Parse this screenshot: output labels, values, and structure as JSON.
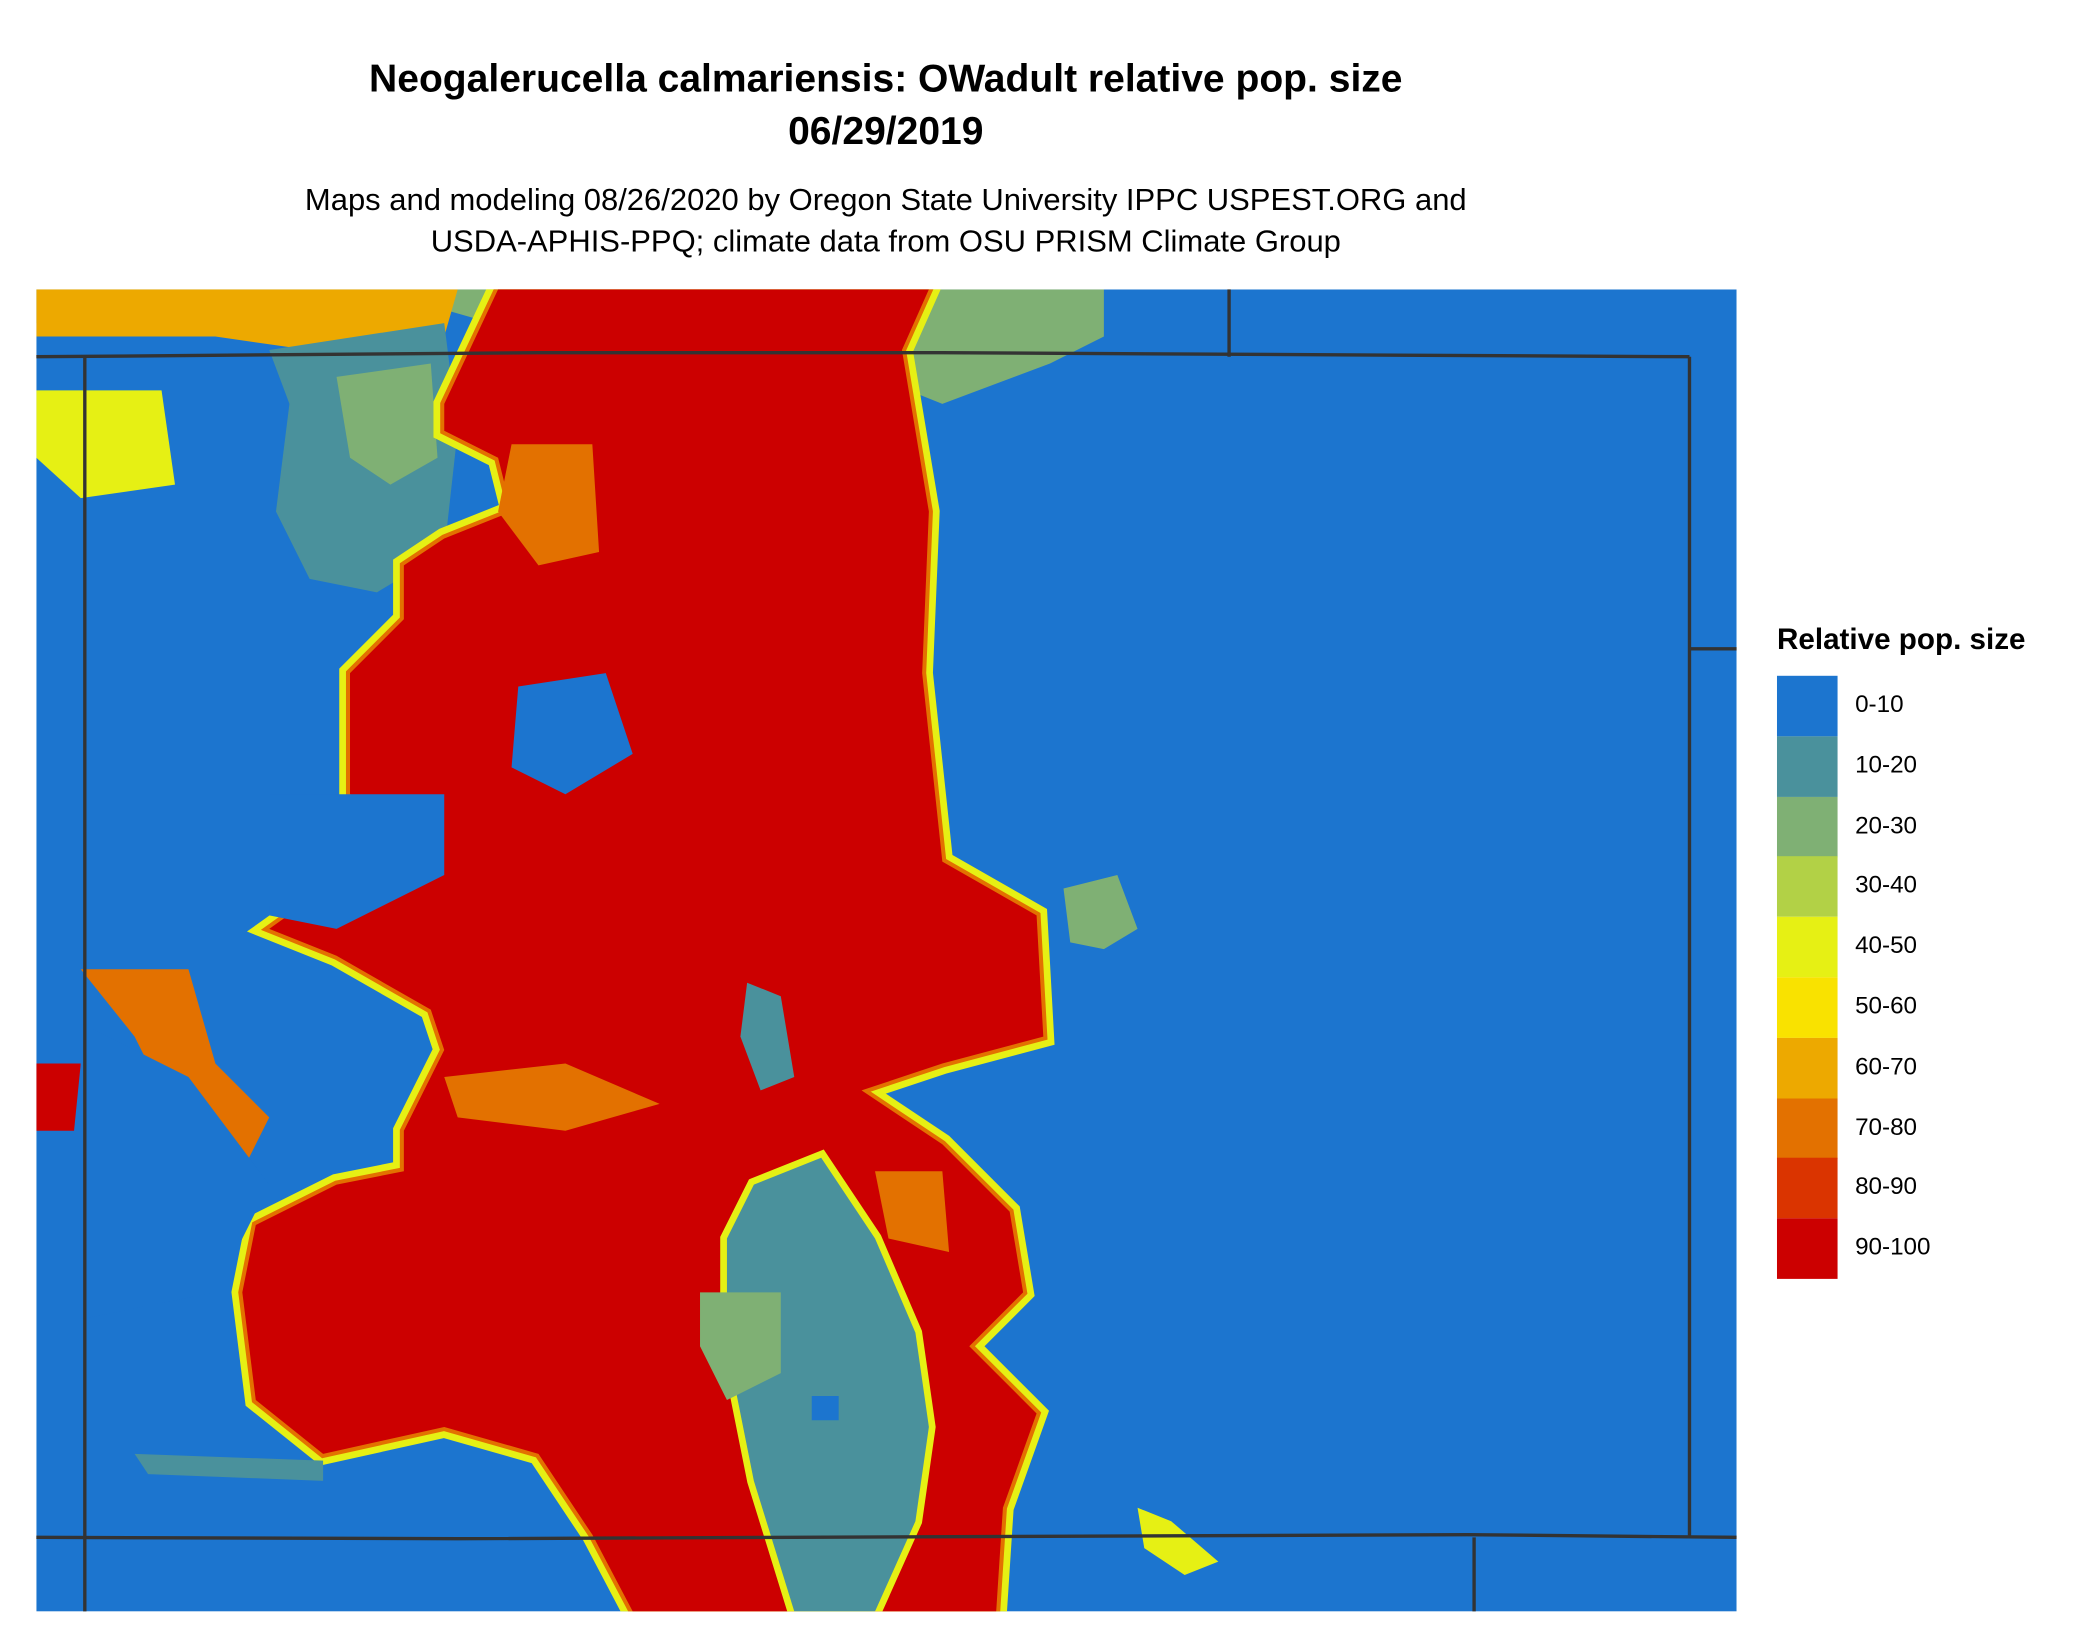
{
  "title": "Neogalerucella calmariensis: OWadult relative pop. size",
  "date": "06/29/2019",
  "subtitle": [
    "Maps and modeling 08/26/2020 by Oregon State University IPPC USPEST.ORG and",
    "USDA-APHIS-PPQ; climate data from OSU PRISM Climate Group"
  ],
  "legend": {
    "title": "Relative pop. size",
    "items": [
      {
        "label": "0-10",
        "color": "#1c75cf"
      },
      {
        "label": "10-20",
        "color": "#4a919c"
      },
      {
        "label": "20-30",
        "color": "#7fb074"
      },
      {
        "label": "30-40",
        "color": "#b2d146"
      },
      {
        "label": "40-50",
        "color": "#e6f014"
      },
      {
        "label": "50-60",
        "color": "#f9e200"
      },
      {
        "label": "60-70",
        "color": "#eda900"
      },
      {
        "label": "70-80",
        "color": "#e37100"
      },
      {
        "label": "80-90",
        "color": "#da3400"
      },
      {
        "label": "90-100",
        "color": "#cc0000"
      }
    ]
  }
}
